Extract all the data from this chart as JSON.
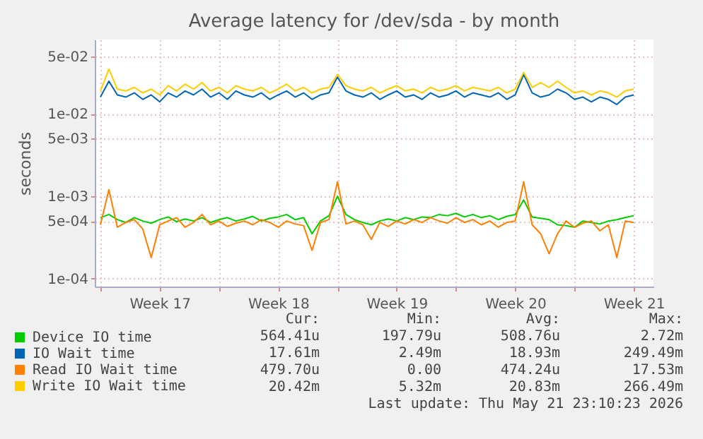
{
  "chart_data": {
    "type": "line",
    "title": "Average latency for /dev/sda - by month",
    "ylabel": "seconds",
    "log": "y",
    "grid": true,
    "legend": "bottom left",
    "line_style": "solid",
    "marker": "none",
    "xlim": [
      "2026-04-19T16:00",
      "2026-05-22T16:00"
    ],
    "xticks": [
      {
        "value": "2026-04-20T00:00",
        "label": null
      },
      {
        "value": "2026-04-23T12:00",
        "label": "Week 17"
      },
      {
        "value": "2026-04-27T00:00",
        "label": null
      },
      {
        "value": "2026-04-30T12:00",
        "label": "Week 18"
      },
      {
        "value": "2026-05-04T00:00",
        "label": null
      },
      {
        "value": "2026-05-07T12:00",
        "label": "Week 19"
      },
      {
        "value": "2026-05-11T00:00",
        "label": null
      },
      {
        "value": "2026-05-14T12:00",
        "label": "Week 20"
      },
      {
        "value": "2026-05-18T00:00",
        "label": null
      },
      {
        "value": "2026-05-21T12:00",
        "label": "Week 21"
      }
    ],
    "ylim": [
      8e-05,
      0.08
    ],
    "yticks": [
      {
        "value": 0.0001,
        "label": "1e-04"
      },
      {
        "value": 0.0005,
        "label": "5e-04"
      },
      {
        "value": 0.001,
        "label": "1e-03"
      },
      {
        "value": 0.005,
        "label": "5e-03"
      },
      {
        "value": 0.01,
        "label": "1e-02"
      },
      {
        "value": 0.05,
        "label": "5e-02"
      }
    ],
    "x": [
      "2026-04-20T00:00",
      "2026-04-20T12:00",
      "2026-04-21T00:00",
      "2026-04-21T12:00",
      "2026-04-22T00:00",
      "2026-04-22T12:00",
      "2026-04-23T00:00",
      "2026-04-23T12:00",
      "2026-04-24T00:00",
      "2026-04-24T12:00",
      "2026-04-25T00:00",
      "2026-04-25T12:00",
      "2026-04-26T00:00",
      "2026-04-26T12:00",
      "2026-04-27T00:00",
      "2026-04-27T12:00",
      "2026-04-28T00:00",
      "2026-04-28T12:00",
      "2026-04-29T00:00",
      "2026-04-29T12:00",
      "2026-04-30T00:00",
      "2026-04-30T12:00",
      "2026-05-01T00:00",
      "2026-05-01T12:00",
      "2026-05-02T00:00",
      "2026-05-02T12:00",
      "2026-05-03T00:00",
      "2026-05-03T12:00",
      "2026-05-04T00:00",
      "2026-05-04T12:00",
      "2026-05-05T00:00",
      "2026-05-05T12:00",
      "2026-05-06T00:00",
      "2026-05-06T12:00",
      "2026-05-07T00:00",
      "2026-05-07T12:00",
      "2026-05-08T00:00",
      "2026-05-08T12:00",
      "2026-05-09T00:00",
      "2026-05-09T12:00",
      "2026-05-10T00:00",
      "2026-05-10T12:00",
      "2026-05-11T00:00",
      "2026-05-11T12:00",
      "2026-05-12T00:00",
      "2026-05-12T12:00",
      "2026-05-13T00:00",
      "2026-05-13T12:00",
      "2026-05-14T00:00",
      "2026-05-14T12:00",
      "2026-05-15T00:00",
      "2026-05-15T12:00",
      "2026-05-16T00:00",
      "2026-05-16T12:00",
      "2026-05-17T00:00",
      "2026-05-17T12:00",
      "2026-05-18T00:00",
      "2026-05-18T12:00",
      "2026-05-19T00:00",
      "2026-05-19T12:00",
      "2026-05-20T00:00",
      "2026-05-20T12:00",
      "2026-05-21T00:00",
      "2026-05-21T12:00"
    ],
    "series": [
      {
        "name": "Device IO time",
        "color": "#00cc00",
        "values": [
          0.00055,
          0.0006,
          0.00052,
          0.00048,
          0.00055,
          0.0005,
          0.00047,
          0.00052,
          0.00056,
          0.00049,
          0.00053,
          0.0005,
          0.00055,
          0.00048,
          0.00052,
          0.00055,
          0.0005,
          0.00053,
          0.00057,
          0.0005,
          0.00054,
          0.00056,
          0.0006,
          0.00052,
          0.00055,
          0.00035,
          0.0005,
          0.00058,
          0.001,
          0.0006,
          0.00052,
          0.00048,
          0.00045,
          0.0005,
          0.00053,
          0.0005,
          0.00055,
          0.00052,
          0.00056,
          0.00055,
          0.0006,
          0.00058,
          0.00062,
          0.00056,
          0.0006,
          0.00055,
          0.00058,
          0.00052,
          0.00057,
          0.0006,
          0.0009,
          0.00056,
          0.00054,
          0.00052,
          0.00045,
          0.00044,
          0.00042,
          0.0005,
          0.00048,
          0.00046,
          0.0005,
          0.00052,
          0.00055,
          0.00058
        ]
      },
      {
        "name": "IO Wait time",
        "color": "#0066b3",
        "values": [
          0.016,
          0.025,
          0.017,
          0.016,
          0.018,
          0.015,
          0.017,
          0.014,
          0.018,
          0.016,
          0.019,
          0.017,
          0.02,
          0.016,
          0.018,
          0.015,
          0.019,
          0.017,
          0.016,
          0.018,
          0.015,
          0.017,
          0.019,
          0.016,
          0.018,
          0.015,
          0.017,
          0.018,
          0.028,
          0.019,
          0.017,
          0.016,
          0.018,
          0.015,
          0.017,
          0.019,
          0.016,
          0.017,
          0.015,
          0.018,
          0.016,
          0.017,
          0.019,
          0.016,
          0.018,
          0.017,
          0.016,
          0.018,
          0.015,
          0.017,
          0.03,
          0.018,
          0.016,
          0.017,
          0.02,
          0.018,
          0.015,
          0.016,
          0.014,
          0.016,
          0.015,
          0.013,
          0.016,
          0.017
        ]
      },
      {
        "name": "Read IO Wait time",
        "color": "#ff8000",
        "values": [
          0.00045,
          0.0012,
          0.00042,
          0.00048,
          0.00052,
          0.0004,
          0.00018,
          0.00045,
          0.0005,
          0.00055,
          0.00042,
          0.00048,
          0.0006,
          0.00045,
          0.0005,
          0.00043,
          0.00047,
          0.0005,
          0.00045,
          0.00052,
          0.00048,
          0.00042,
          0.0005,
          0.00046,
          0.00044,
          0.00022,
          0.00048,
          0.00052,
          0.0015,
          0.00046,
          0.0005,
          0.00045,
          0.0003,
          0.00048,
          0.00043,
          0.0005,
          0.00046,
          0.00052,
          0.00048,
          0.00055,
          0.0005,
          0.00047,
          0.00055,
          0.00048,
          0.00052,
          0.00045,
          0.0005,
          0.00042,
          0.00048,
          0.0005,
          0.0015,
          0.00045,
          0.00035,
          0.0002,
          0.00035,
          0.0005,
          0.00042,
          0.00047,
          0.0005,
          0.00038,
          0.00045,
          0.00018,
          0.0005,
          0.00048
        ]
      },
      {
        "name": "Write IO Wait time",
        "color": "#ffcc00",
        "values": [
          0.019,
          0.035,
          0.02,
          0.019,
          0.021,
          0.018,
          0.02,
          0.017,
          0.022,
          0.019,
          0.023,
          0.02,
          0.024,
          0.019,
          0.021,
          0.018,
          0.022,
          0.02,
          0.019,
          0.021,
          0.018,
          0.02,
          0.023,
          0.019,
          0.021,
          0.018,
          0.02,
          0.021,
          0.03,
          0.022,
          0.02,
          0.019,
          0.021,
          0.018,
          0.02,
          0.022,
          0.019,
          0.02,
          0.018,
          0.021,
          0.019,
          0.02,
          0.022,
          0.019,
          0.021,
          0.02,
          0.019,
          0.021,
          0.018,
          0.02,
          0.032,
          0.021,
          0.024,
          0.021,
          0.025,
          0.021,
          0.018,
          0.019,
          0.017,
          0.019,
          0.018,
          0.016,
          0.019,
          0.02
        ]
      }
    ],
    "annotations": [
      "Cur:",
      "Min:",
      "Avg:",
      "Max:",
      "564.41u",
      "197.79u",
      "508.76u",
      "2.72m",
      "17.61m",
      "2.49m",
      "18.93m",
      "249.49m",
      "479.70u",
      "0.00",
      "474.24u",
      "17.53m",
      "20.42m",
      "5.32m",
      "20.83m",
      "266.49m",
      "Last update: Thu May 21 23:10:23 2026"
    ]
  }
}
